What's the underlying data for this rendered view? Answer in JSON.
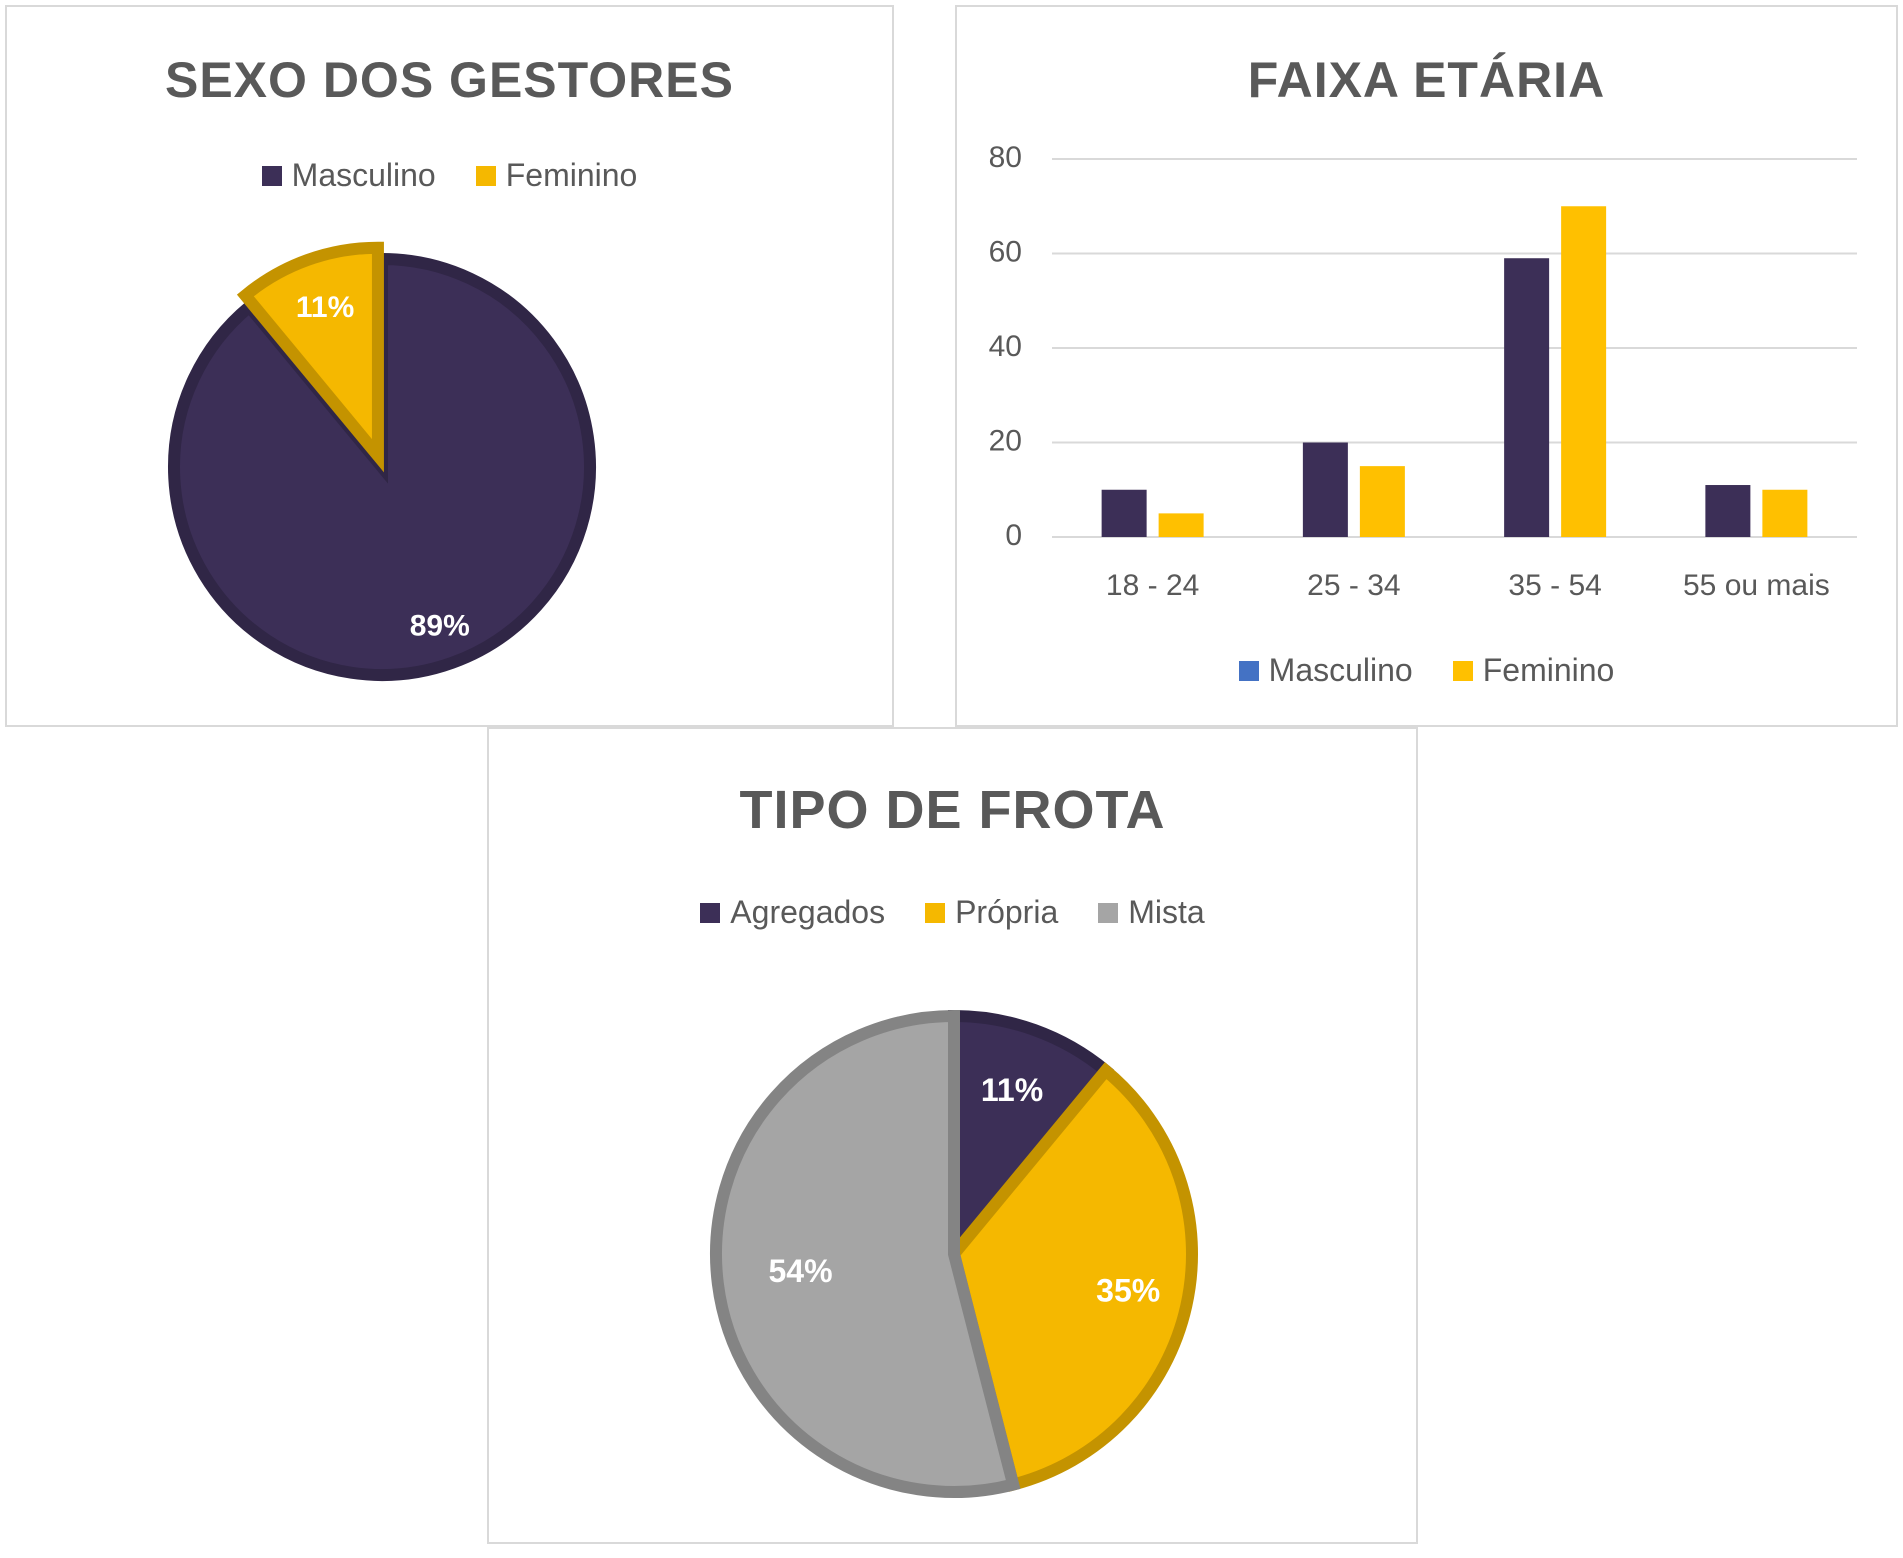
{
  "chart_data": [
    {
      "type": "pie",
      "title": "SEXO DOS GESTORES",
      "legend_position": "top",
      "slices": [
        {
          "name": "Masculino",
          "value": 89,
          "label": "89%",
          "color": "#3c2f57"
        },
        {
          "name": "Feminino",
          "value": 11,
          "label": "11%",
          "color": "#f5b800"
        }
      ]
    },
    {
      "type": "bar",
      "title": "FAIXA ETÁRIA",
      "categories": [
        "18 - 24",
        "25 - 34",
        "35 - 54",
        "55 ou mais"
      ],
      "series": [
        {
          "name": "Masculino",
          "values": [
            10,
            20,
            59,
            11
          ],
          "color": "#3c2f57",
          "legend_color": "#4472c4"
        },
        {
          "name": "Feminino",
          "values": [
            5,
            15,
            70,
            10
          ],
          "color": "#ffc000",
          "legend_color": "#ffc000"
        }
      ],
      "ylim": [
        0,
        80
      ],
      "yticks": [
        0,
        20,
        40,
        60,
        80
      ],
      "grid": true,
      "legend_position": "bottom"
    },
    {
      "type": "pie",
      "title": "TIPO DE FROTA",
      "legend_position": "top",
      "slices": [
        {
          "name": "Agregados",
          "value": 11,
          "label": "11%",
          "color": "#3c2f57"
        },
        {
          "name": "Própria",
          "value": 35,
          "label": "35%",
          "color": "#f5b800"
        },
        {
          "name": "Mista",
          "value": 54,
          "label": "54%",
          "color": "#a5a5a5"
        }
      ]
    }
  ]
}
